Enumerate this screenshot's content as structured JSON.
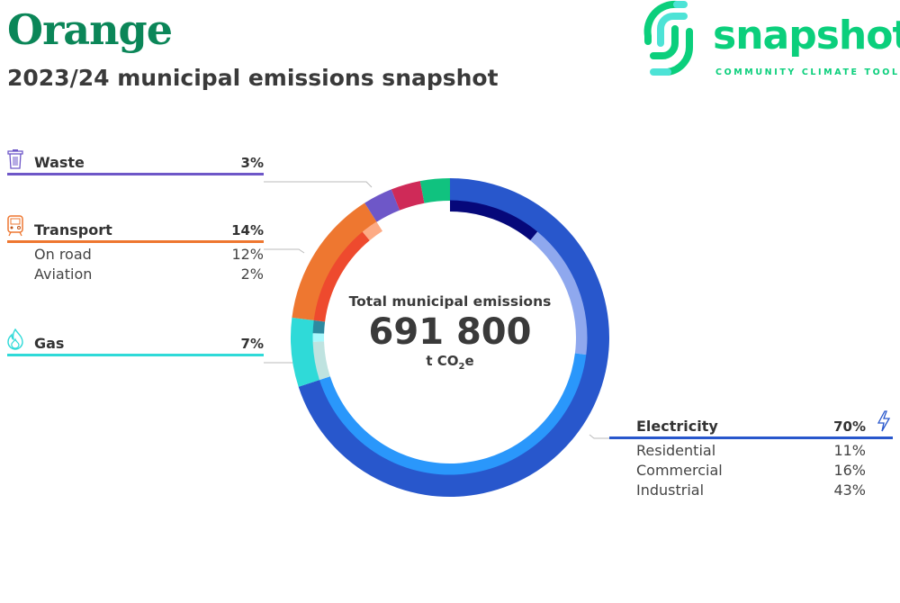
{
  "header": {
    "title": "Orange",
    "subtitle": "2023/24 municipal emissions snapshot"
  },
  "logo": {
    "word": "snapshot",
    "tagline": "COMMUNITY CLIMATE TOOL",
    "colors": [
      "#0bcf7c",
      "#4de3d6"
    ]
  },
  "center": {
    "label": "Total municipal emissions",
    "value": "691 800",
    "unit_prefix": "t CO",
    "unit_sub": "2",
    "unit_suffix": "e"
  },
  "legend": {
    "waste": {
      "name": "Waste",
      "pct": "3%",
      "color": "#6e57c8",
      "icon": "trash-can-icon"
    },
    "transport": {
      "name": "Transport",
      "pct": "14%",
      "color": "#ee7730",
      "icon": "train-icon",
      "subs": [
        {
          "name": "On road",
          "pct": "12%"
        },
        {
          "name": "Aviation",
          "pct": "2%"
        }
      ]
    },
    "gas": {
      "name": "Gas",
      "pct": "7%",
      "color": "#2fdad8",
      "icon": "flame-icon"
    },
    "electricity": {
      "name": "Electricity",
      "pct": "70%",
      "color": "#2857cc",
      "icon": "lightning-bolt-icon",
      "subs": [
        {
          "name": "Residential",
          "pct": "11%"
        },
        {
          "name": "Commercial",
          "pct": "16%"
        },
        {
          "name": "Industrial",
          "pct": "43%"
        }
      ]
    }
  },
  "chart_data": {
    "type": "pie",
    "total": 691800,
    "outer_ring": [
      {
        "name": "Electricity",
        "value": 70,
        "color": "#2857cc"
      },
      {
        "name": "Gas",
        "value": 7,
        "color": "#2fdad8"
      },
      {
        "name": "Transport",
        "value": 14,
        "color": "#ee7730"
      },
      {
        "name": "Waste",
        "value": 3,
        "color": "#6e57c8"
      },
      {
        "value": 3,
        "color": "#cf2a58"
      },
      {
        "value": 3,
        "color": "#10c27f"
      }
    ],
    "inner_ring": [
      {
        "name": "Residential",
        "value": 11,
        "color": "#06087a"
      },
      {
        "name": "Commercial",
        "value": 16,
        "color": "#8fa8ee"
      },
      {
        "name": "Industrial",
        "value": 43,
        "color": "#2a97fb"
      },
      {
        "value": 4.5,
        "color": "#bfe3e0"
      },
      {
        "value": 1,
        "color": "#a8f8fc"
      },
      {
        "value": 1.5,
        "color": "#2d8aa0"
      },
      {
        "name": "On road",
        "value": 12,
        "color": "#ee4a2e"
      },
      {
        "name": "Aviation",
        "value": 2,
        "color": "#fdab85"
      }
    ]
  }
}
